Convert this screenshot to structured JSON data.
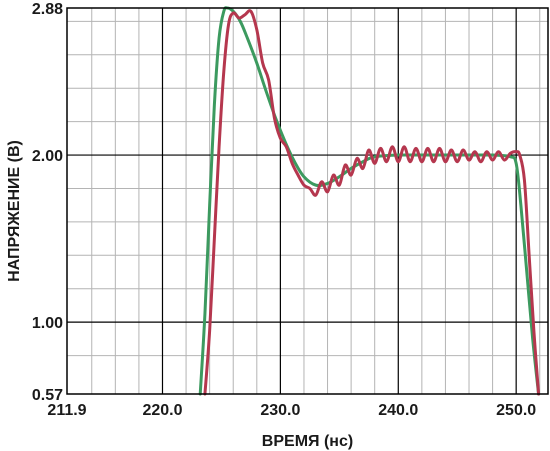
{
  "chart_data": {
    "type": "line",
    "title": "",
    "xlabel": "ВРЕМЯ (нс)",
    "ylabel": "НАПРЯЖЕНИЕ (В)",
    "xlim": [
      211.9,
      252.7
    ],
    "ylim": [
      0.57,
      2.88
    ],
    "x_ticks": [
      {
        "value": 211.9,
        "label": "211.9"
      },
      {
        "value": 220.0,
        "label": "220.0"
      },
      {
        "value": 230.0,
        "label": "230.0"
      },
      {
        "value": 240.0,
        "label": "240.0"
      },
      {
        "value": 250.0,
        "label": "250.0"
      }
    ],
    "y_ticks": [
      {
        "value": 0.57,
        "label": "0.57"
      },
      {
        "value": 1.0,
        "label": "1.00"
      },
      {
        "value": 2.0,
        "label": "2.00"
      },
      {
        "value": 2.88,
        "label": "2.88"
      }
    ],
    "grid": true,
    "colors": {
      "grid_minor": "#b4b4b4",
      "grid_major": "#000000",
      "series_green": "#3c9a5f",
      "series_red": "#b5374e"
    },
    "series": [
      {
        "color": "#3c9a5f",
        "x": [
          223.2,
          223.6,
          224.0,
          224.4,
          224.8,
          225.2,
          225.5,
          226.0,
          226.6,
          227.2,
          228.0,
          228.8,
          229.6,
          230.4,
          231.2,
          232.0,
          233.0,
          234.0,
          235.0,
          236.0,
          237.0,
          238.0,
          240.0,
          242.0,
          244.0,
          246.0,
          248.0,
          249.5,
          250.0,
          250.4,
          250.9,
          251.4,
          251.9
        ],
        "y": [
          0.57,
          1.05,
          1.7,
          2.3,
          2.7,
          2.86,
          2.88,
          2.86,
          2.8,
          2.7,
          2.55,
          2.38,
          2.22,
          2.08,
          1.96,
          1.87,
          1.82,
          1.83,
          1.87,
          1.92,
          1.96,
          1.99,
          2.0,
          2.0,
          2.0,
          2.0,
          2.0,
          1.99,
          1.95,
          1.7,
          1.3,
          0.9,
          0.57
        ]
      },
      {
        "color": "#b5374e",
        "x": [
          223.6,
          224.0,
          224.4,
          224.8,
          225.2,
          225.6,
          226.0,
          226.5,
          227.0,
          227.5,
          228.0,
          228.5,
          229.0,
          229.5,
          230.0,
          230.5,
          231.0,
          231.5,
          232.0,
          232.5,
          233.0,
          233.5,
          234.0,
          234.5,
          235.0,
          235.5,
          236.0,
          236.5,
          237.0,
          237.5,
          238.0,
          238.5,
          239.0,
          239.5,
          240.0,
          240.5,
          241.0,
          241.5,
          242.0,
          242.5,
          243.0,
          243.5,
          244.0,
          244.5,
          245.0,
          245.5,
          246.0,
          246.5,
          247.0,
          247.5,
          248.0,
          248.5,
          249.0,
          249.5,
          250.0,
          250.3,
          250.7,
          251.1,
          251.5,
          251.9
        ],
        "y": [
          0.57,
          0.95,
          1.5,
          2.05,
          2.5,
          2.78,
          2.85,
          2.82,
          2.84,
          2.86,
          2.75,
          2.55,
          2.45,
          2.22,
          2.1,
          2.05,
          1.95,
          1.88,
          1.82,
          1.8,
          1.76,
          1.84,
          1.78,
          1.88,
          1.82,
          1.94,
          1.88,
          1.98,
          1.92,
          2.03,
          1.95,
          2.04,
          1.96,
          2.05,
          1.96,
          2.05,
          1.96,
          2.04,
          1.96,
          2.04,
          1.96,
          2.04,
          1.96,
          2.03,
          1.96,
          2.03,
          1.97,
          2.02,
          1.96,
          2.02,
          1.97,
          2.02,
          1.97,
          2.01,
          2.02,
          2.0,
          1.85,
          1.4,
          0.95,
          0.57
        ]
      }
    ]
  }
}
